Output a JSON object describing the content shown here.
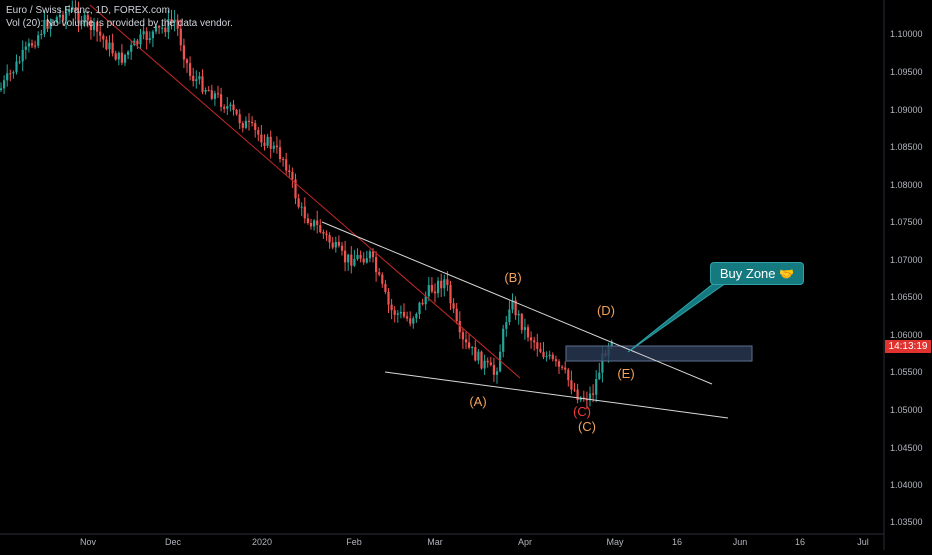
{
  "header": {
    "title": "Euro / Swiss Franc, 1D, FOREX.com",
    "volume_note": "Vol (20): No volume is provided by the data vendor."
  },
  "price_axis": {
    "ticks": [
      "1.10000",
      "1.09500",
      "1.09000",
      "1.08500",
      "1.08000",
      "1.07500",
      "1.07000",
      "1.06500",
      "1.06000",
      "1.05500",
      "1.05000",
      "1.04500",
      "1.04000",
      "1.03500"
    ],
    "countdown": "14:13:19"
  },
  "time_axis": {
    "ticks": [
      "Nov",
      "Dec",
      "2020",
      "Feb",
      "Mar",
      "Apr",
      "May",
      "16",
      "Jun",
      "16",
      "Jul"
    ]
  },
  "annotations": {
    "wave_labels": [
      "(A)",
      "(B)",
      "(C)",
      "(C)",
      "(D)",
      "(E)"
    ],
    "callout_text": "Buy Zone",
    "callout_emoji": "🤝"
  },
  "colors": {
    "background": "#000000",
    "up_candle": "#26a69a",
    "down_candle": "#ef5350",
    "trendline": "#d9d9d9",
    "downtrend_line": "#c62828",
    "wave_label": "#f4a259",
    "wave_label_red": "#ef3b3b",
    "callout_bg": "#157a80",
    "zone_fill": "#2a3a55",
    "price_tag": "#e0322f"
  }
}
